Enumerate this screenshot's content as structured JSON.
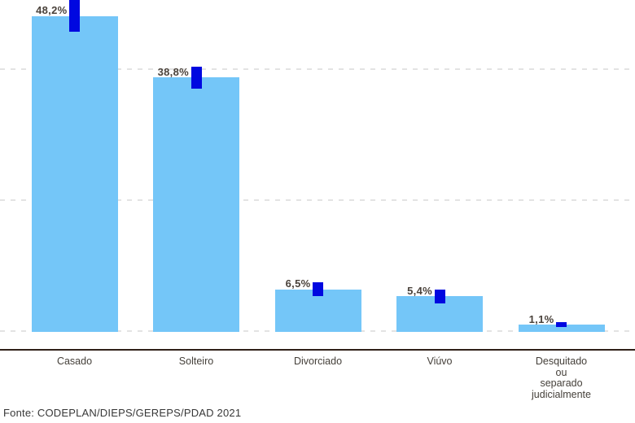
{
  "chart_data": {
    "type": "bar",
    "categories": [
      "Casado",
      "Solteiro",
      "Divorciado",
      "Viúvo",
      "Desquitado\nou\nseparado\njudicialmente"
    ],
    "values": [
      48.2,
      38.8,
      6.5,
      5.4,
      1.1
    ],
    "value_labels": [
      "48,2%",
      "38,8%",
      "6,5%",
      "5,4%",
      "1,1%"
    ],
    "error_margins_pct": [
      2.4,
      1.7,
      1.1,
      1.05,
      0.4
    ],
    "ylim": [
      0,
      50
    ],
    "gridlines_pct": [
      0,
      20,
      40
    ],
    "grid": "horizontal-dashed, no y-axis tick labels",
    "legend": "none",
    "value_suffix": "%"
  },
  "colors": {
    "bar": "#74C6F8",
    "marker": "#0008E0",
    "value_label": "#4A423B",
    "axis_label": "#45403A",
    "axis_line": "#2F2018",
    "gridline": "#E3E3E3",
    "background": "#FFFFFF",
    "footer": "#383838"
  },
  "footer": {
    "source": "Fonte: CODEPLAN/DIEPS/GEREPS/PDAD 2021"
  }
}
